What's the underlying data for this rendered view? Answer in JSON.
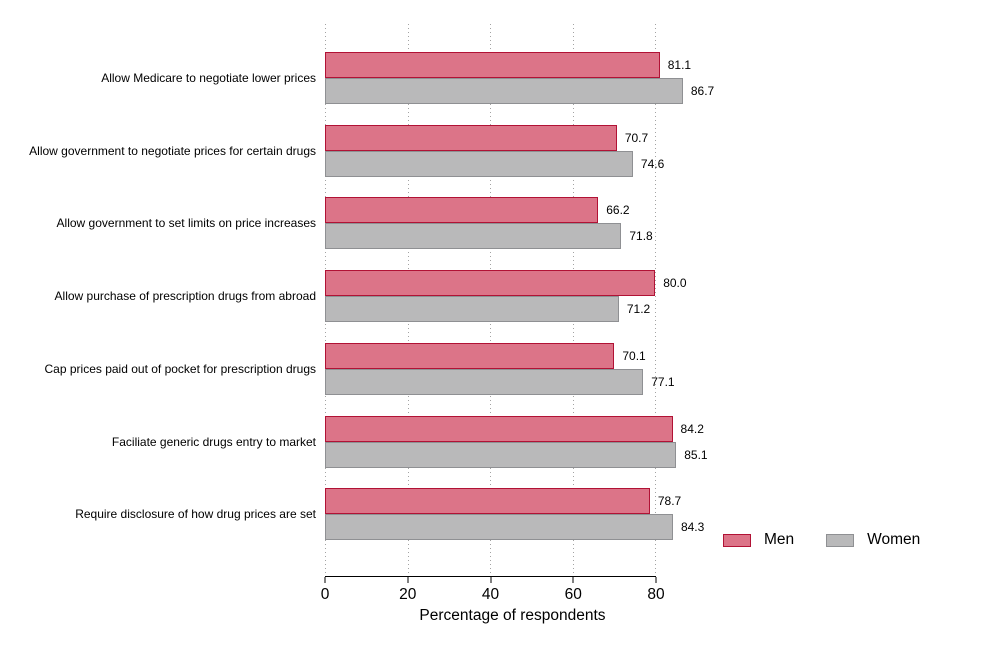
{
  "chart_data": {
    "type": "bar",
    "orientation": "horizontal",
    "title": "",
    "xlabel": "Percentage of respondents",
    "ylabel": "",
    "categories": [
      "Allow Medicare to negotiate lower prices",
      "Allow government to negotiate prices for certain drugs",
      "Allow government to set limits on price increases",
      "Allow purchase of prescription drugs from abroad",
      "Cap prices paid out of pocket for prescription drugs",
      "Faciliate generic drugs entry to market",
      "Require disclosure of how drug prices are set"
    ],
    "series": [
      {
        "name": "Men",
        "values": [
          81.1,
          70.7,
          66.2,
          80.0,
          70.1,
          84.2,
          78.7
        ],
        "fill_color": "#dc7488",
        "border_color": "#b11235"
      },
      {
        "name": "Women",
        "values": [
          86.7,
          74.6,
          71.8,
          71.2,
          77.1,
          85.1,
          84.3
        ],
        "fill_color": "#b9b9ba",
        "border_color": "#8f9093"
      }
    ],
    "value_labels_decimals": 1,
    "xticks": [
      0,
      20,
      40,
      60,
      80
    ],
    "xlim": [
      0,
      94
    ],
    "axis_max_tick": 80,
    "grid": "dotted-vertical",
    "legend_position": "bottom-right"
  }
}
